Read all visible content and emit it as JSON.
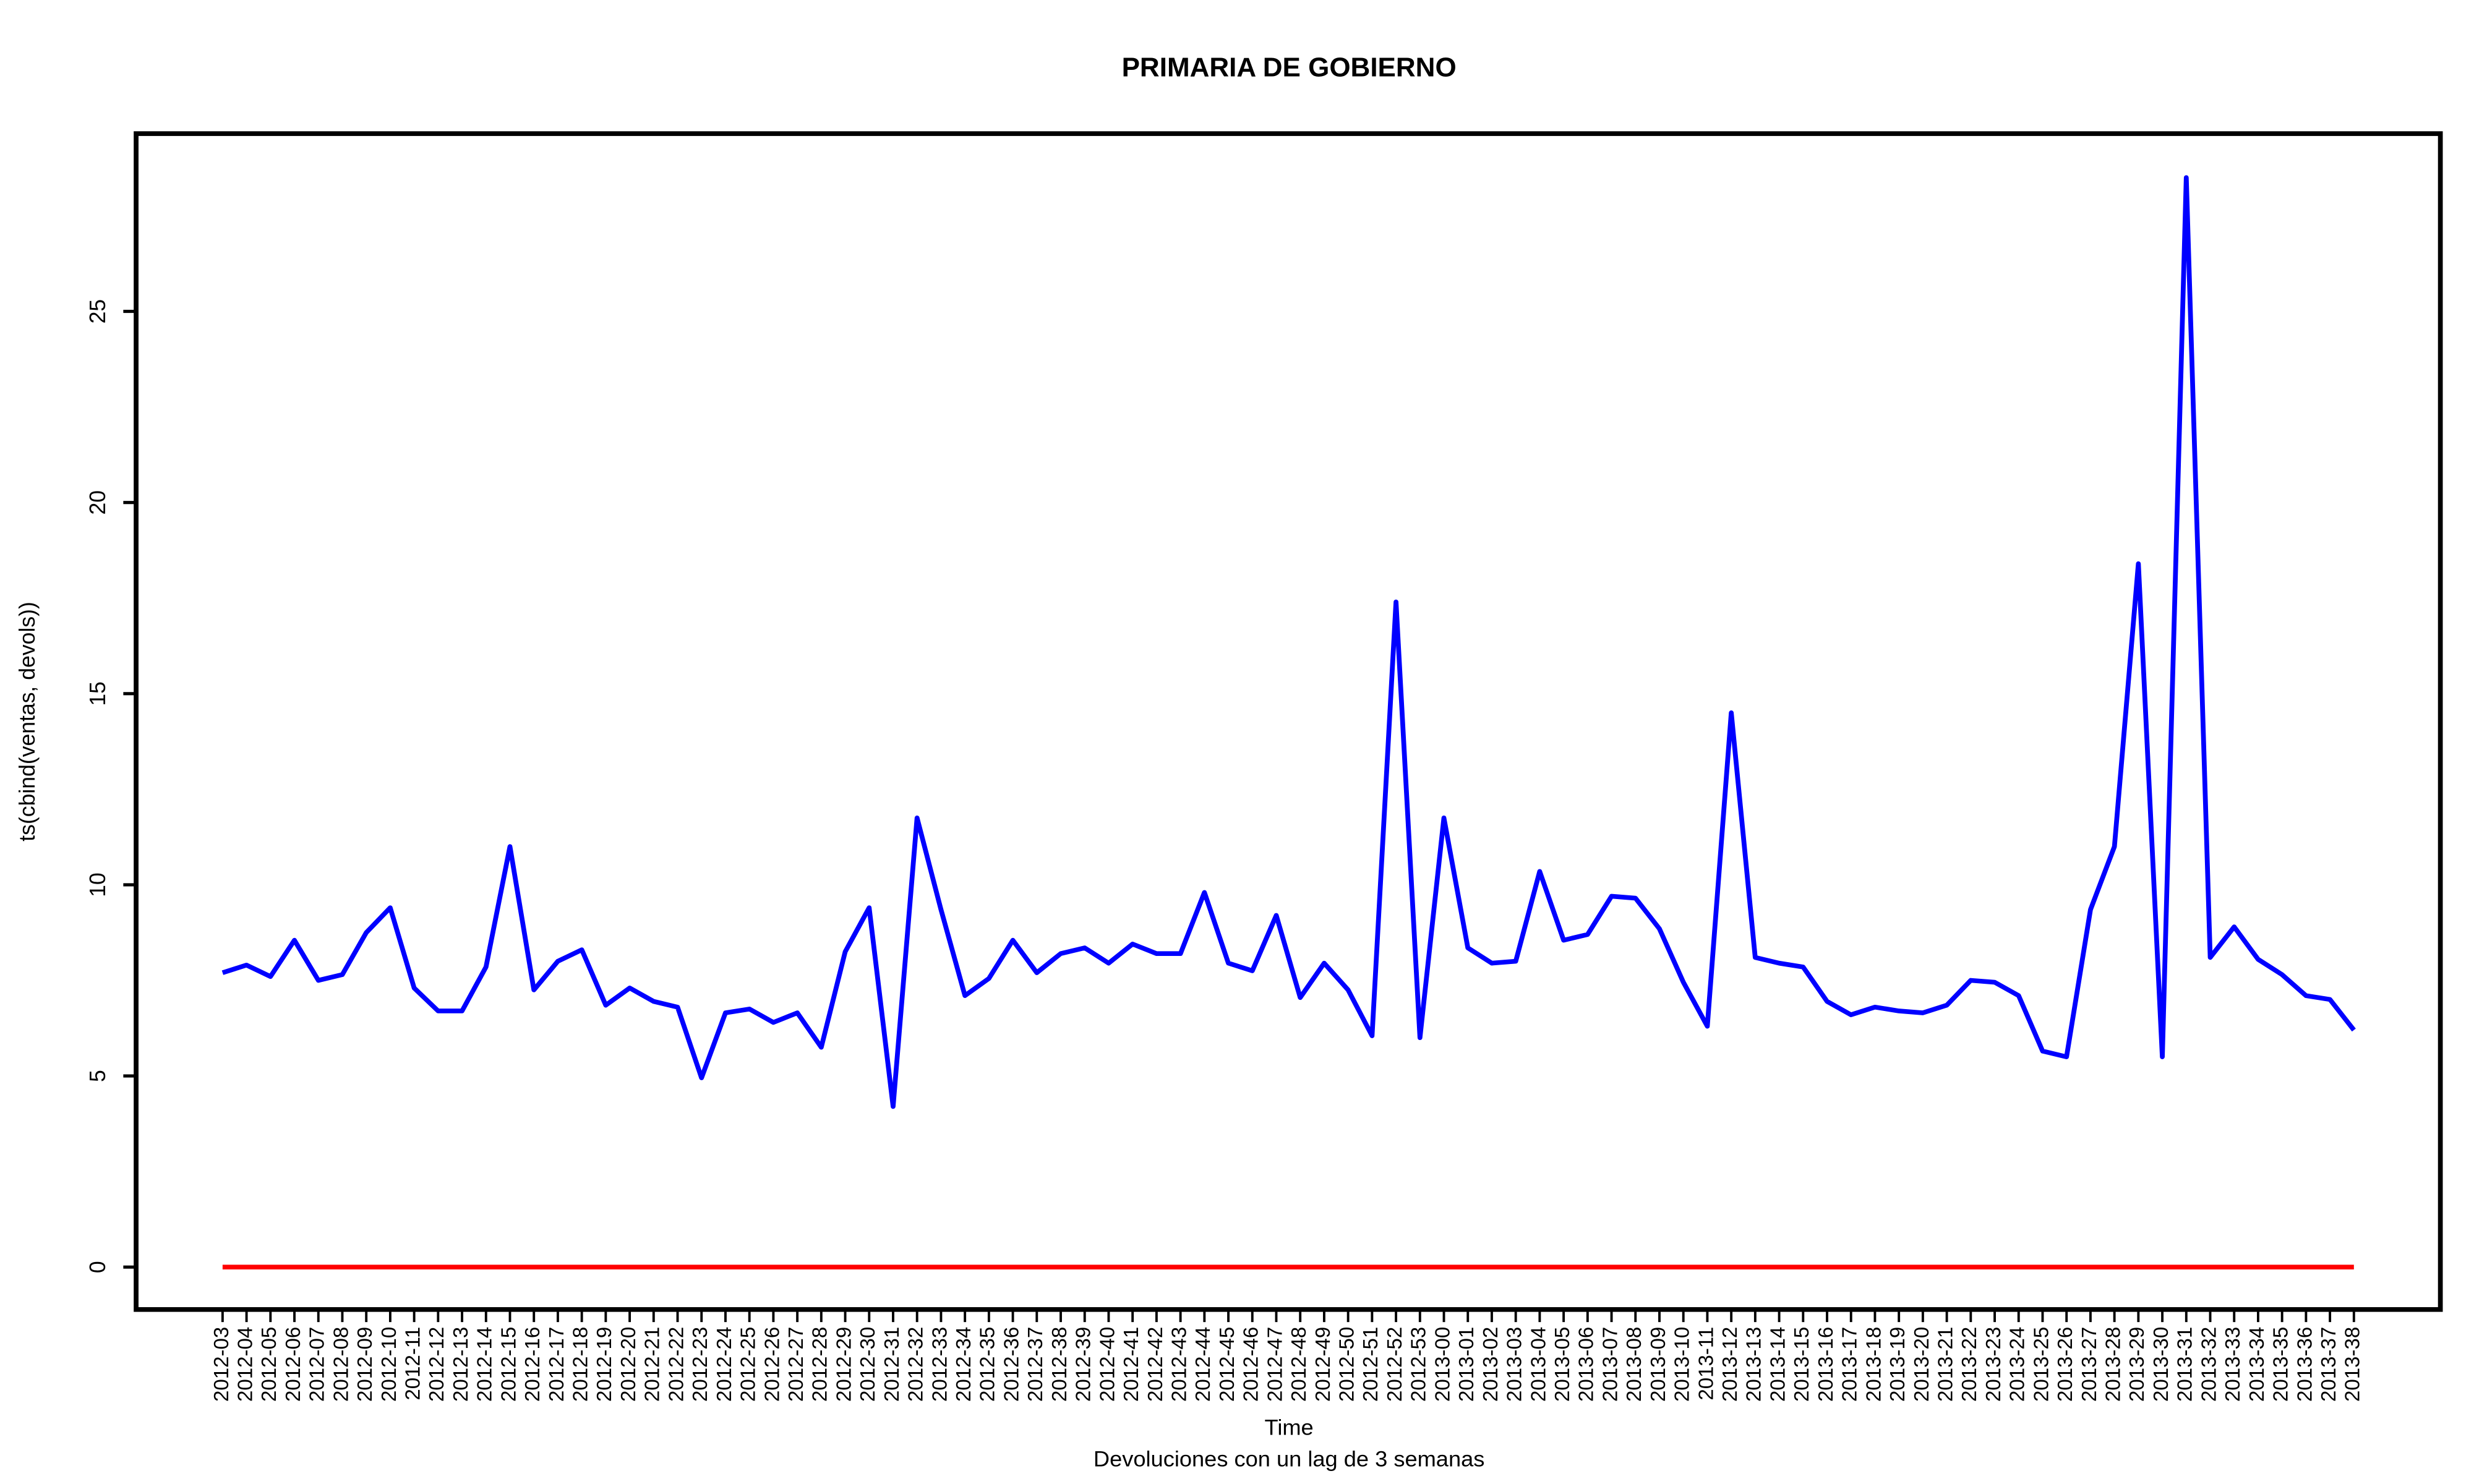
{
  "chart_data": {
    "type": "line",
    "title": "PRIMARIA DE GOBIERNO",
    "x_label": "Time",
    "y_label": "ts(cbind(ventas, devols))",
    "subtitle": "Devoluciones con un lag de 3 semanas",
    "categories": [
      "2012-03",
      "2012-04",
      "2012-05",
      "2012-06",
      "2012-07",
      "2012-08",
      "2012-09",
      "2012-10",
      "2012-11",
      "2012-12",
      "2012-13",
      "2012-14",
      "2012-15",
      "2012-16",
      "2012-17",
      "2012-18",
      "2012-19",
      "2012-20",
      "2012-21",
      "2012-22",
      "2012-23",
      "2012-24",
      "2012-25",
      "2012-26",
      "2012-27",
      "2012-28",
      "2012-29",
      "2012-30",
      "2012-31",
      "2012-32",
      "2012-33",
      "2012-34",
      "2012-35",
      "2012-36",
      "2012-37",
      "2012-38",
      "2012-39",
      "2012-40",
      "2012-41",
      "2012-42",
      "2012-43",
      "2012-44",
      "2012-45",
      "2012-46",
      "2012-47",
      "2012-48",
      "2012-49",
      "2012-50",
      "2012-51",
      "2012-52",
      "2012-53",
      "2013-00",
      "2013-01",
      "2013-02",
      "2013-03",
      "2013-04",
      "2013-05",
      "2013-06",
      "2013-07",
      "2013-08",
      "2013-09",
      "2013-10",
      "2013-11",
      "2013-12",
      "2013-13",
      "2013-14",
      "2013-15",
      "2013-16",
      "2013-17",
      "2013-18",
      "2013-19",
      "2013-20",
      "2013-21",
      "2013-22",
      "2013-23",
      "2013-24",
      "2013-25",
      "2013-26",
      "2013-27",
      "2013-28",
      "2013-29",
      "2013-30",
      "2013-31",
      "2013-32",
      "2013-33",
      "2013-34",
      "2013-35",
      "2013-36",
      "2013-37",
      "2013-38"
    ],
    "series": [
      {
        "color": "#0000ff",
        "values": [
          7.7,
          7.9,
          7.6,
          8.55,
          7.5,
          7.65,
          8.75,
          9.4,
          7.3,
          6.7,
          6.7,
          7.85,
          11.0,
          7.25,
          8.0,
          8.3,
          6.85,
          7.3,
          6.95,
          6.8,
          4.95,
          6.65,
          6.75,
          6.4,
          6.65,
          5.75,
          8.25,
          9.4,
          4.2,
          11.75,
          9.35,
          7.1,
          7.55,
          8.55,
          7.7,
          8.2,
          8.35,
          7.95,
          8.45,
          8.2,
          8.2,
          9.8,
          7.95,
          7.75,
          9.2,
          7.05,
          7.95,
          7.25,
          6.05,
          17.4,
          6.0,
          11.75,
          8.35,
          7.95,
          8.0,
          10.35,
          8.55,
          8.7,
          9.7,
          9.65,
          8.85,
          7.45,
          6.3,
          14.5,
          8.1,
          7.95,
          7.85,
          6.95,
          6.6,
          6.8,
          6.7,
          6.65,
          6.85,
          7.5,
          7.45,
          7.1,
          5.65,
          5.5,
          9.35,
          11.0,
          18.4,
          5.5,
          28.5,
          8.1,
          8.9,
          8.05,
          7.65,
          7.1,
          7.0,
          6.2
        ]
      },
      {
        "color": "#ff0000",
        "values": [
          0,
          0,
          0,
          0,
          0,
          0,
          0,
          0,
          0,
          0,
          0,
          0,
          0,
          0,
          0,
          0,
          0,
          0,
          0,
          0,
          0,
          0,
          0,
          0,
          0,
          0,
          0,
          0,
          0,
          0,
          0,
          0,
          0,
          0,
          0,
          0,
          0,
          0,
          0,
          0,
          0,
          0,
          0,
          0,
          0,
          0,
          0,
          0,
          0,
          0,
          0,
          0,
          0,
          0,
          0,
          0,
          0,
          0,
          0,
          0,
          0,
          0,
          0,
          0,
          0,
          0,
          0,
          0,
          0,
          0,
          0,
          0,
          0,
          0,
          0,
          0,
          0,
          0,
          0,
          0,
          0,
          0,
          0,
          0,
          0,
          0,
          0,
          0,
          0,
          0
        ]
      }
    ],
    "ylim": [
      -1.11,
      29.65
    ],
    "yticks": [
      0,
      5,
      10,
      15,
      20,
      25
    ]
  }
}
